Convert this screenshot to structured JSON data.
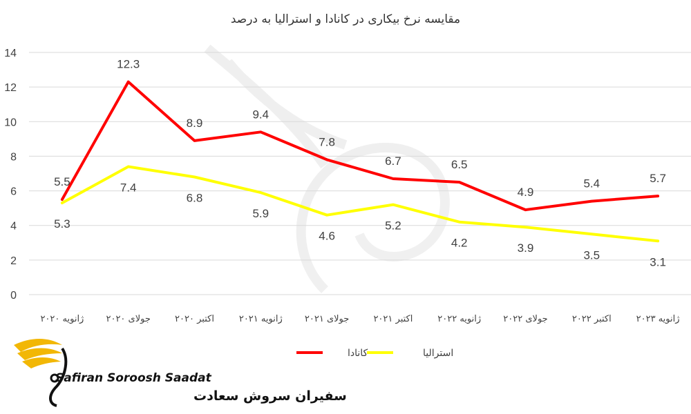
{
  "chart_data": {
    "type": "line",
    "title": "مقایسه نرخ بیکاری در کانادا و استرالیا به درصد",
    "categories": [
      "ژانویه ۲۰۲۰",
      "جولای ۲۰۲۰",
      "اکتبر ۲۰۲۰",
      "ژانویه ۲۰۲۱",
      "جولای ۲۰۲۱",
      "اکتبر ۲۰۲۱",
      "ژانویه ۲۰۲۲",
      "جولای ۲۰۲۲",
      "اکتبر ۲۰۲۲",
      "ژانویه ۲۰۲۳"
    ],
    "series": [
      {
        "name": "کانادا",
        "color": "#ff0000",
        "values": [
          5.5,
          12.3,
          8.9,
          9.4,
          7.8,
          6.7,
          6.5,
          4.9,
          5.4,
          5.7
        ]
      },
      {
        "name": "استرالیا",
        "color": "#ffff00",
        "values": [
          5.3,
          7.4,
          6.8,
          5.9,
          4.6,
          5.2,
          4.2,
          3.9,
          3.5,
          3.1
        ]
      }
    ],
    "ylim": [
      0,
      14
    ],
    "yticks": [
      0,
      2,
      4,
      6,
      8,
      10,
      12,
      14
    ],
    "grid": true,
    "legend_position": "bottom"
  },
  "logo": {
    "text_en": "Safiran Soroosh Saadat",
    "text_fa": "سفیران سروش سعادت",
    "color": "#f2b705"
  }
}
